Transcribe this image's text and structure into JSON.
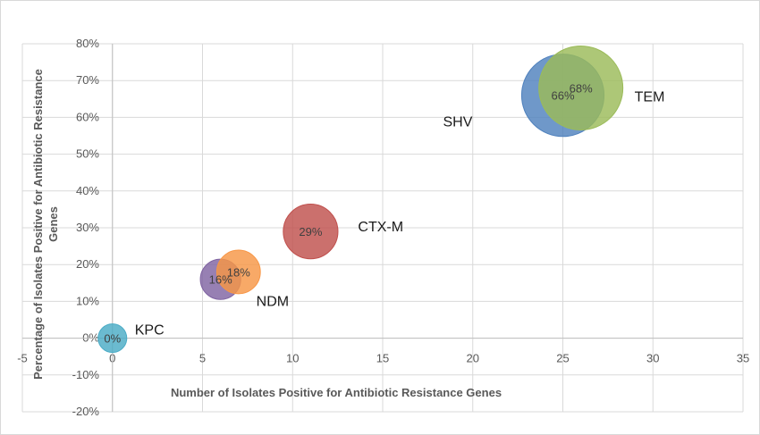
{
  "chart_data": {
    "type": "bubble",
    "title": "",
    "xlabel": "Number of Isolates Positive for Antibiotic Resistance Genes",
    "ylabel_lines": [
      "Percentage of Isolates Positive for Antibiotic Resistance",
      "Genes"
    ],
    "xlim": [
      -5,
      35
    ],
    "ylim": [
      -20,
      80
    ],
    "x_ticks": [
      "-5",
      "0",
      "5",
      "10",
      "15",
      "20",
      "25",
      "30",
      "35"
    ],
    "y_ticks": [
      "-20%",
      "-10%",
      "0%",
      "10%",
      "20%",
      "30%",
      "40%",
      "50%",
      "60%",
      "70%",
      "80%"
    ],
    "grid": true,
    "legend": "none",
    "series": [
      {
        "name": "KPC",
        "x": 0,
        "y": 0,
        "size": 0,
        "label": "0%",
        "color": "#4bacc6"
      },
      {
        "name": "NDM",
        "x": 6,
        "y": 16,
        "size": 6,
        "label": "16%",
        "color": "#8064a2"
      },
      {
        "name": "",
        "x": 7,
        "y": 18,
        "size": 7,
        "label": "18%",
        "color": "#f79646"
      },
      {
        "name": "CTX-M",
        "x": 11,
        "y": 29,
        "size": 11,
        "label": "29%",
        "color": "#c0504d"
      },
      {
        "name": "SHV",
        "x": 25,
        "y": 66,
        "size": 25,
        "label": "66%",
        "color": "#4f81bd"
      },
      {
        "name": "TEM",
        "x": 26,
        "y": 68,
        "size": 26,
        "label": "68%",
        "color": "#9bbb59"
      }
    ]
  }
}
